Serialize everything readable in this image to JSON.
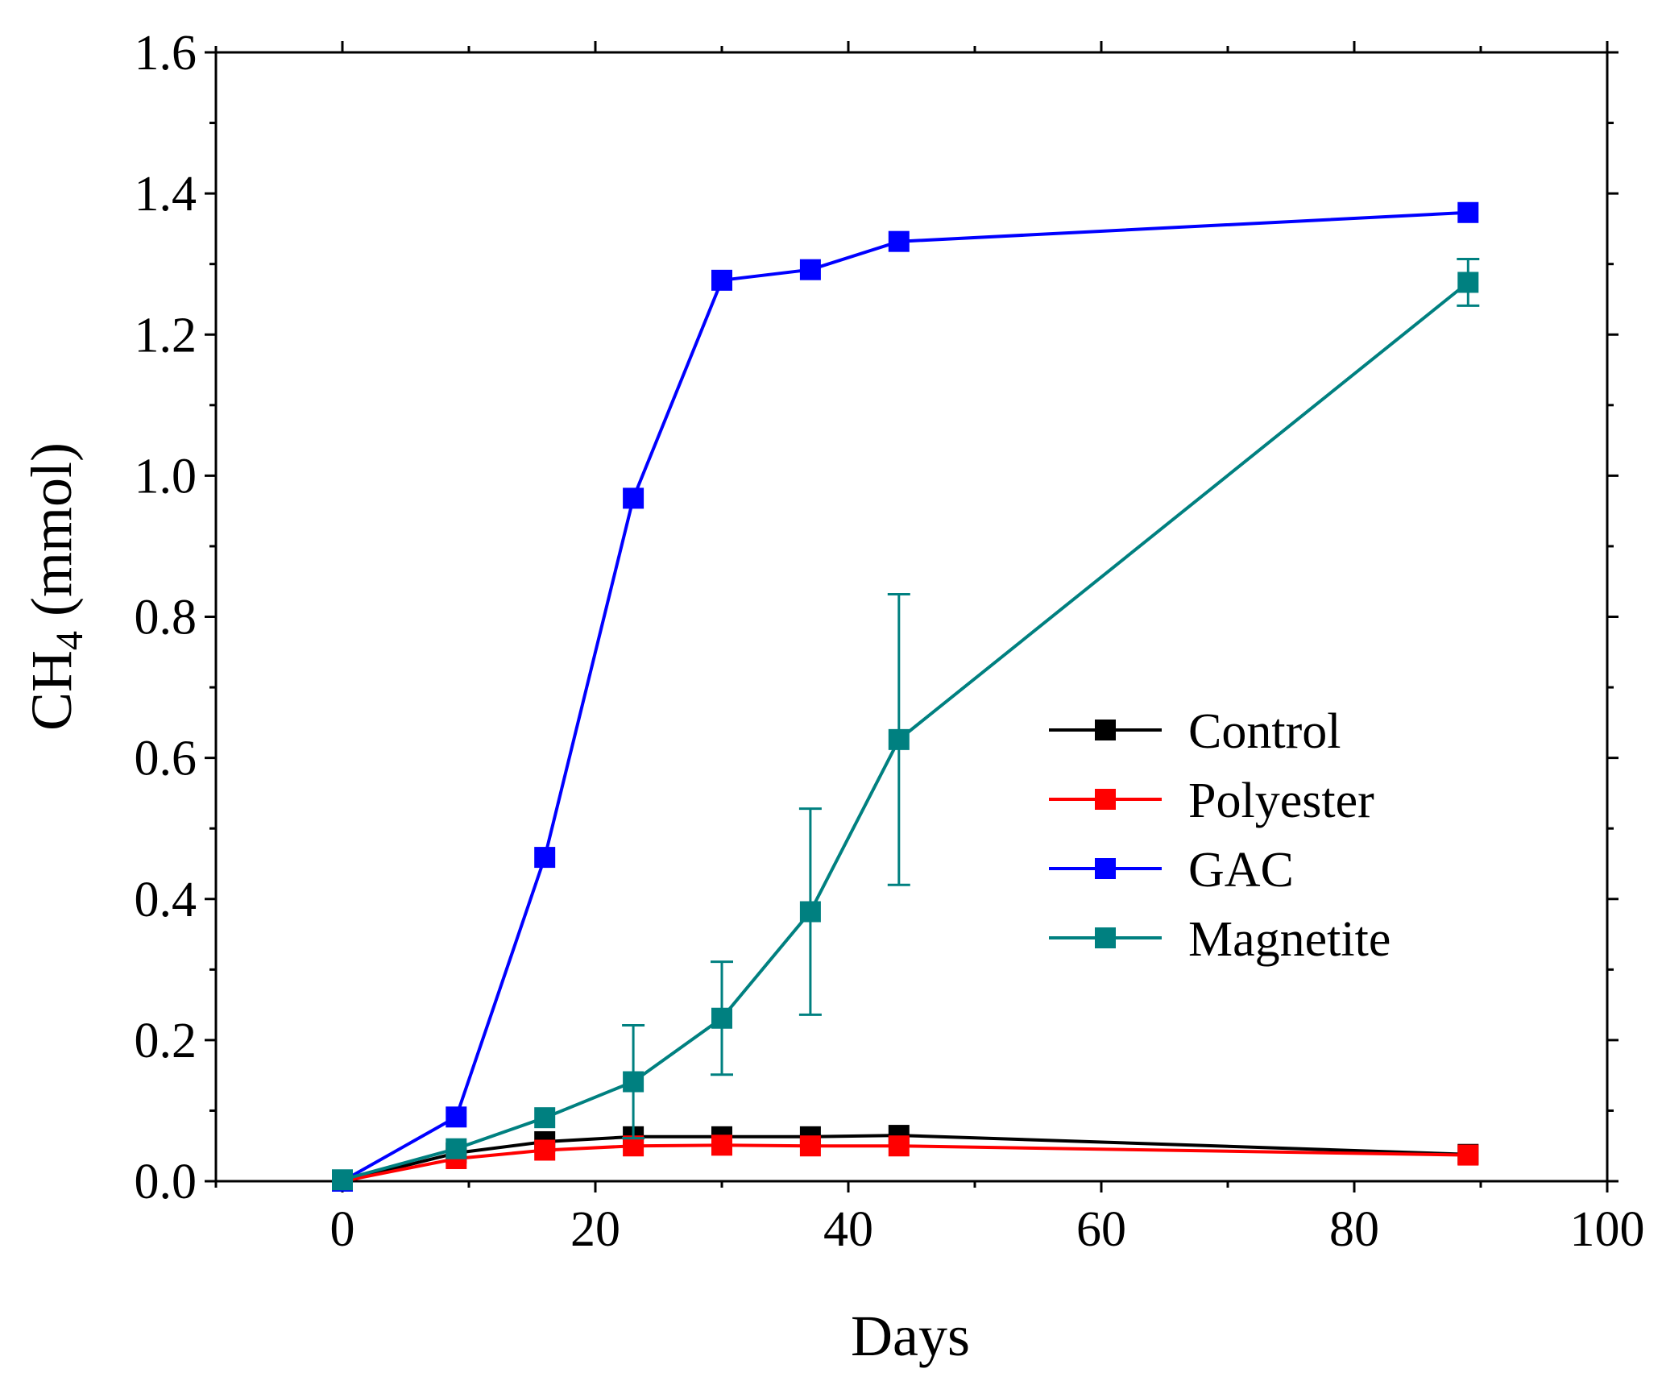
{
  "chart_data": {
    "type": "line",
    "title": "",
    "xlabel": "Days",
    "ylabel": {
      "main": "CH",
      "subscript": "4",
      "unit": " (mmol)"
    },
    "xlim": [
      -10,
      100
    ],
    "ylim": [
      0,
      1.6
    ],
    "x_ticks": [
      "0",
      "20",
      "40",
      "60",
      "80",
      "100"
    ],
    "y_ticks": [
      "0.0",
      "0.2",
      "0.4",
      "0.6",
      "0.8",
      "1.0",
      "1.2",
      "1.4",
      "1.6"
    ],
    "grid": false,
    "legend_position": "right-middle",
    "marker": "square",
    "series": [
      {
        "name": "Control",
        "color": "#000000",
        "x": [
          0,
          9,
          16,
          23,
          30,
          37,
          44,
          89
        ],
        "y": [
          0.0,
          0.04,
          0.056,
          0.063,
          0.063,
          0.063,
          0.065,
          0.038
        ],
        "err": null
      },
      {
        "name": "Polyester",
        "color": "#ff0000",
        "x": [
          0,
          9,
          16,
          23,
          30,
          37,
          44,
          89
        ],
        "y": [
          0.0,
          0.032,
          0.044,
          0.05,
          0.051,
          0.05,
          0.05,
          0.037
        ],
        "err": null
      },
      {
        "name": "GAC",
        "color": "#0000ff",
        "x": [
          0,
          9,
          16,
          23,
          30,
          37,
          44,
          89
        ],
        "y": [
          0.0,
          0.091,
          0.459,
          0.968,
          1.277,
          1.292,
          1.332,
          1.373
        ],
        "err": null
      },
      {
        "name": "Magnetite",
        "color": "#008080",
        "x": [
          0,
          9,
          16,
          23,
          30,
          37,
          44,
          89
        ],
        "y": [
          0.002,
          0.046,
          0.09,
          0.141,
          0.231,
          0.382,
          0.626,
          1.274
        ],
        "err": [
          0.0,
          0.0,
          0.0,
          0.08,
          0.08,
          0.146,
          0.206,
          0.033
        ]
      }
    ]
  }
}
